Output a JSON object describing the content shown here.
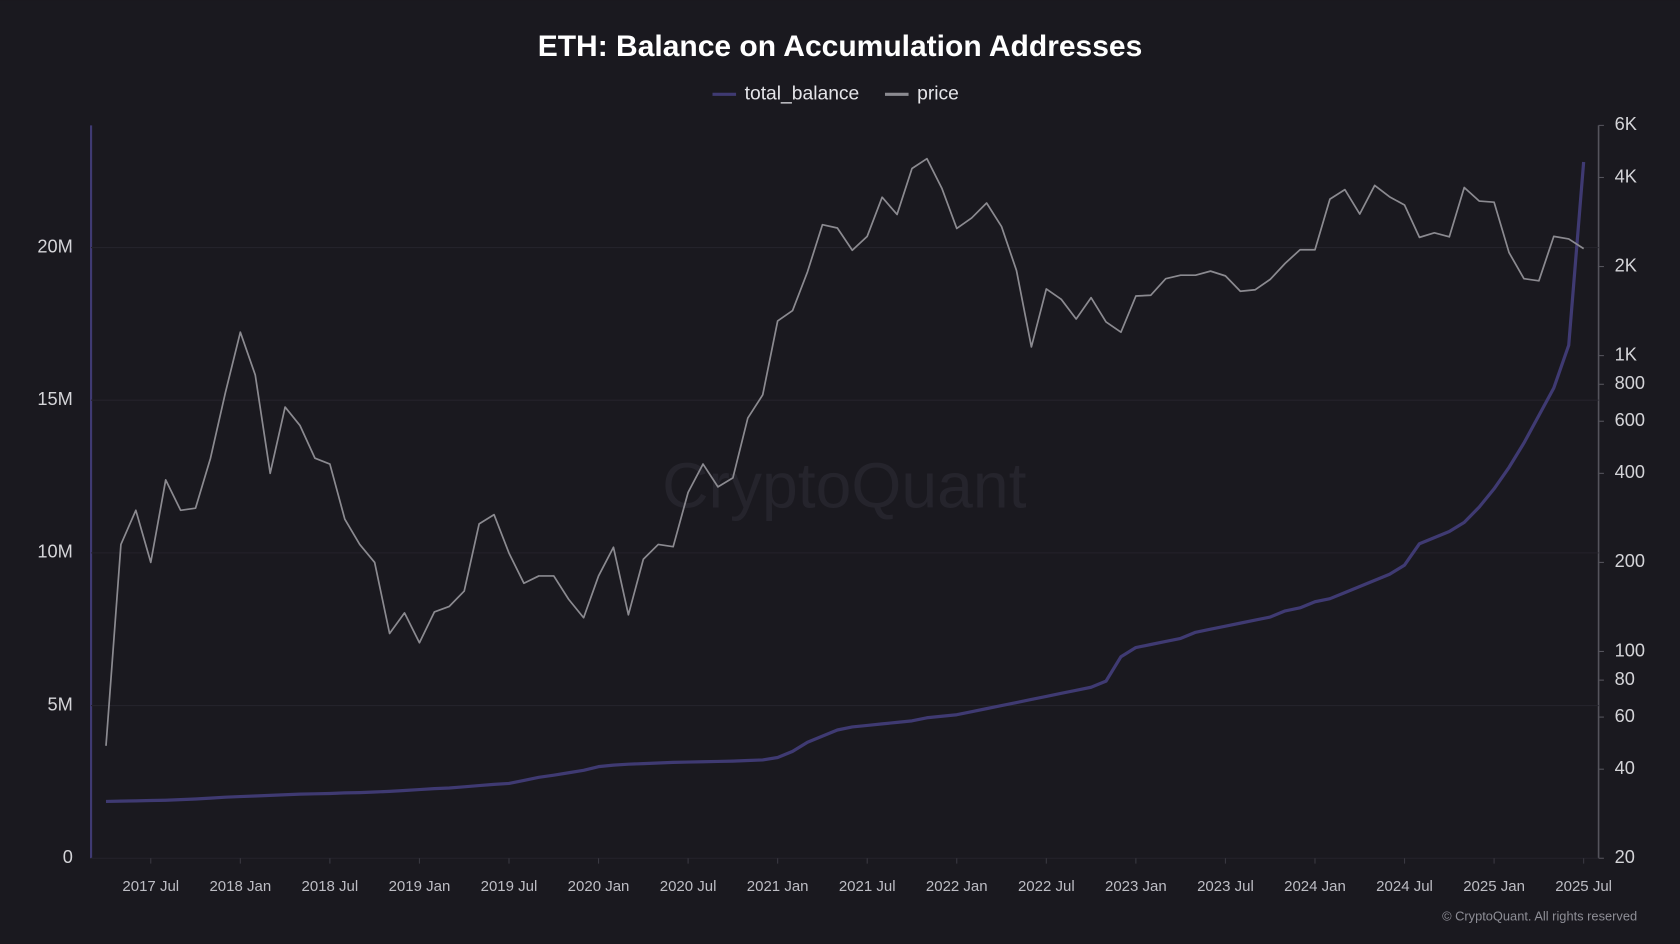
{
  "chart_data": {
    "type": "line",
    "title": "ETH: Balance on Accumulation Addresses",
    "watermark": "CryptoQuant",
    "footer": "© CryptoQuant. All rights reserved",
    "grid": true,
    "legend": "top",
    "x": [
      "2017-04",
      "2017-05",
      "2017-06",
      "2017-07",
      "2017-08",
      "2017-09",
      "2017-10",
      "2017-11",
      "2017-12",
      "2018-01",
      "2018-02",
      "2018-03",
      "2018-04",
      "2018-05",
      "2018-06",
      "2018-07",
      "2018-08",
      "2018-09",
      "2018-10",
      "2018-11",
      "2018-12",
      "2019-01",
      "2019-02",
      "2019-03",
      "2019-04",
      "2019-05",
      "2019-06",
      "2019-07",
      "2019-08",
      "2019-09",
      "2019-10",
      "2019-11",
      "2019-12",
      "2020-01",
      "2020-02",
      "2020-03",
      "2020-04",
      "2020-05",
      "2020-06",
      "2020-07",
      "2020-08",
      "2020-09",
      "2020-10",
      "2020-11",
      "2020-12",
      "2021-01",
      "2021-02",
      "2021-03",
      "2021-04",
      "2021-05",
      "2021-06",
      "2021-07",
      "2021-08",
      "2021-09",
      "2021-10",
      "2021-11",
      "2021-12",
      "2022-01",
      "2022-02",
      "2022-03",
      "2022-04",
      "2022-05",
      "2022-06",
      "2022-07",
      "2022-08",
      "2022-09",
      "2022-10",
      "2022-11",
      "2022-12",
      "2023-01",
      "2023-02",
      "2023-03",
      "2023-04",
      "2023-05",
      "2023-06",
      "2023-07",
      "2023-08",
      "2023-09",
      "2023-10",
      "2023-11",
      "2023-12",
      "2024-01",
      "2024-02",
      "2024-03",
      "2024-04",
      "2024-05",
      "2024-06",
      "2024-07",
      "2024-08",
      "2024-09",
      "2024-10",
      "2024-11",
      "2024-12",
      "2025-01",
      "2025-02",
      "2025-03",
      "2025-04",
      "2025-05",
      "2025-06",
      "2025-07"
    ],
    "xlim": [
      "2017-03",
      "2025-08"
    ],
    "xticks": [
      {
        "value": "2017-07",
        "label": "2017 Jul"
      },
      {
        "value": "2018-01",
        "label": "2018 Jan"
      },
      {
        "value": "2018-07",
        "label": "2018 Jul"
      },
      {
        "value": "2019-01",
        "label": "2019 Jan"
      },
      {
        "value": "2019-07",
        "label": "2019 Jul"
      },
      {
        "value": "2020-01",
        "label": "2020 Jan"
      },
      {
        "value": "2020-07",
        "label": "2020 Jul"
      },
      {
        "value": "2021-01",
        "label": "2021 Jan"
      },
      {
        "value": "2021-07",
        "label": "2021 Jul"
      },
      {
        "value": "2022-01",
        "label": "2022 Jan"
      },
      {
        "value": "2022-07",
        "label": "2022 Jul"
      },
      {
        "value": "2023-01",
        "label": "2023 Jan"
      },
      {
        "value": "2023-07",
        "label": "2023 Jul"
      },
      {
        "value": "2024-01",
        "label": "2024 Jan"
      },
      {
        "value": "2024-07",
        "label": "2024 Jul"
      },
      {
        "value": "2025-01",
        "label": "2025 Jan"
      },
      {
        "value": "2025-07",
        "label": "2025 Jul"
      }
    ],
    "ylim": [
      0,
      24000000
    ],
    "yticks": [
      0,
      {
        "value": 5000000,
        "label": "5M"
      },
      {
        "value": 10000000,
        "label": "10M"
      },
      {
        "value": 15000000,
        "label": "15M"
      },
      {
        "value": 20000000,
        "label": "20M"
      }
    ],
    "y2lim": [
      20,
      6000
    ],
    "y2log": true,
    "y2ticks": [
      20,
      40,
      60,
      80,
      100,
      200,
      400,
      600,
      800,
      {
        "value": 1000,
        "label": "1K"
      },
      {
        "value": 2000,
        "label": "2K"
      },
      {
        "value": 4000,
        "label": "4K"
      },
      {
        "value": 6000,
        "label": "6K"
      }
    ],
    "series": [
      {
        "name": "total_balance",
        "color": "#3f3a72",
        "axis": "y",
        "values": [
          1860000,
          1870000,
          1880000,
          1890000,
          1900000,
          1920000,
          1940000,
          1970000,
          2000000,
          2020000,
          2040000,
          2060000,
          2080000,
          2100000,
          2110000,
          2120000,
          2140000,
          2150000,
          2170000,
          2190000,
          2220000,
          2250000,
          2280000,
          2300000,
          2340000,
          2380000,
          2420000,
          2450000,
          2550000,
          2650000,
          2720000,
          2800000,
          2880000,
          3000000,
          3050000,
          3080000,
          3100000,
          3120000,
          3140000,
          3150000,
          3160000,
          3170000,
          3180000,
          3200000,
          3220000,
          3300000,
          3500000,
          3800000,
          4000000,
          4200000,
          4300000,
          4350000,
          4400000,
          4450000,
          4500000,
          4600000,
          4650000,
          4700000,
          4800000,
          4900000,
          5000000,
          5100000,
          5200000,
          5300000,
          5400000,
          5500000,
          5600000,
          5800000,
          6600000,
          6900000,
          7000000,
          7100000,
          7200000,
          7400000,
          7500000,
          7600000,
          7700000,
          7800000,
          7900000,
          8100000,
          8200000,
          8400000,
          8500000,
          8700000,
          8900000,
          9100000,
          9300000,
          9600000,
          10300000,
          10500000,
          10700000,
          11000000,
          11500000,
          12100000,
          12800000,
          13600000,
          14500000,
          15400000,
          16800000,
          22800000
        ]
      },
      {
        "name": "price",
        "color": "#8b8a90",
        "axis": "y2",
        "values": [
          48,
          230,
          300,
          200,
          380,
          300,
          305,
          450,
          750,
          1200,
          860,
          400,
          670,
          580,
          450,
          430,
          280,
          230,
          200,
          115,
          135,
          107,
          136,
          142,
          160,
          270,
          290,
          215,
          170,
          180,
          180,
          150,
          130,
          180,
          225,
          133,
          205,
          230,
          226,
          345,
          430,
          360,
          386,
          615,
          737,
          1310,
          1420,
          1920,
          2770,
          2700,
          2270,
          2530,
          3430,
          3000,
          4290,
          4630,
          3680,
          2690,
          2920,
          3280,
          2730,
          1940,
          1070,
          1680,
          1550,
          1330,
          1570,
          1300,
          1200,
          1590,
          1600,
          1820,
          1870,
          1870,
          1930,
          1860,
          1650,
          1670,
          1810,
          2050,
          2280,
          2280,
          3380,
          3640,
          3010,
          3760,
          3440,
          3230,
          2510,
          2600,
          2520,
          3700,
          3330,
          3300,
          2230,
          1820,
          1790,
          2530,
          2480,
          2300
        ]
      }
    ]
  }
}
